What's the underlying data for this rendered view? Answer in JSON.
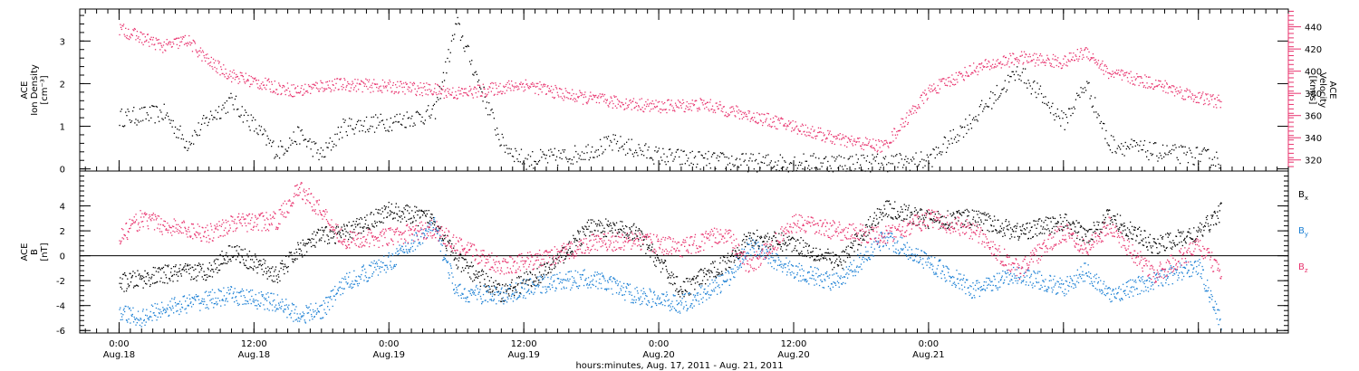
{
  "chart_data": [
    {
      "type": "scatter",
      "panel": "top",
      "ylabel_left": [
        "ACE",
        "Ion Density",
        "[cm⁻³]"
      ],
      "ylabel_right": [
        "ACE",
        "Velocity",
        "[km/s]"
      ],
      "left_axis": {
        "ticks": [
          0,
          1,
          2,
          3
        ],
        "tick_labels": [
          "0",
          "1",
          "2",
          "3"
        ],
        "ylim": [
          -0.05,
          3.75
        ]
      },
      "right_axis": {
        "ticks": [
          320,
          340,
          360,
          380,
          400,
          420,
          440
        ],
        "tick_labels": [
          "320",
          "340",
          "360",
          "380",
          "400",
          "420",
          "440"
        ],
        "ylim": [
          310,
          456
        ],
        "color": "#e8336e"
      },
      "series": [
        {
          "name": "Ion Density",
          "axis": "left",
          "color": "#000000",
          "x": [
            0,
            4,
            6,
            8,
            10,
            14,
            16,
            18,
            20,
            24,
            28,
            30,
            32,
            34,
            36,
            40,
            44,
            48,
            52,
            56,
            60,
            64,
            68,
            72,
            76,
            80,
            84,
            86,
            88,
            92,
            96,
            98
          ],
          "y": [
            1.2,
            1.3,
            0.6,
            1.2,
            1.6,
            0.4,
            0.8,
            0.3,
            1.0,
            1.1,
            1.3,
            3.4,
            2.0,
            0.6,
            0.2,
            0.3,
            0.6,
            0.3,
            0.2,
            0.15,
            0.15,
            0.15,
            0.15,
            0.2,
            1.2,
            2.3,
            1.1,
            2.0,
            0.6,
            0.4,
            0.3,
            0.2
          ]
        },
        {
          "name": "Velocity",
          "axis": "right",
          "color": "#e8336e",
          "x": [
            0,
            4,
            6,
            8,
            10,
            14,
            16,
            18,
            20,
            24,
            28,
            30,
            32,
            34,
            36,
            40,
            44,
            48,
            52,
            56,
            60,
            64,
            68,
            72,
            76,
            80,
            84,
            86,
            88,
            92,
            96,
            98
          ],
          "y": [
            438,
            422,
            428,
            408,
            396,
            385,
            382,
            387,
            388,
            386,
            383,
            380,
            382,
            385,
            388,
            378,
            372,
            368,
            370,
            360,
            350,
            338,
            332,
            382,
            402,
            412,
            408,
            418,
            398,
            389,
            376,
            372
          ]
        }
      ],
      "xlim": [
        -3.5,
        104
      ]
    },
    {
      "type": "scatter",
      "panel": "bottom",
      "ylabel_left": [
        "ACE",
        "B",
        "[nT]"
      ],
      "axis": {
        "ticks": [
          -6,
          -4,
          -2,
          0,
          2,
          4
        ],
        "tick_labels": [
          "-6",
          "-4",
          "-2",
          "0",
          "2",
          "4"
        ],
        "ylim": [
          -6.2,
          6.8
        ]
      },
      "series": [
        {
          "name": "Bx",
          "label_main": "B",
          "label_sub": "x",
          "color": "#000000",
          "x": [
            0,
            4,
            8,
            10,
            14,
            16,
            18,
            20,
            24,
            28,
            30,
            34,
            38,
            42,
            46,
            50,
            54,
            56,
            60,
            64,
            68,
            72,
            76,
            80,
            84,
            86,
            88,
            92,
            96,
            98
          ],
          "y": [
            -2.2,
            -1.5,
            -1.2,
            0.4,
            -1.6,
            0.5,
            1.6,
            1.8,
            3.6,
            2.9,
            -0.4,
            -3.0,
            -1.2,
            2.4,
            1.8,
            -2.8,
            -0.5,
            1.4,
            1.0,
            -0.6,
            3.8,
            2.9,
            3.0,
            1.9,
            2.7,
            1.6,
            3.1,
            0.8,
            1.8,
            3.6
          ]
        },
        {
          "name": "By",
          "label_main": "B",
          "label_sub": "y",
          "color": "#1a7fd4",
          "x": [
            0,
            2,
            4,
            8,
            10,
            14,
            16,
            18,
            20,
            24,
            28,
            30,
            34,
            38,
            42,
            46,
            50,
            54,
            56,
            60,
            64,
            68,
            72,
            76,
            80,
            84,
            86,
            88,
            92,
            96,
            98
          ],
          "y": [
            -4.6,
            -5.0,
            -4.2,
            -3.5,
            -3.2,
            -3.8,
            -4.8,
            -4.4,
            -2.2,
            -0.5,
            2.4,
            -3.0,
            -3.2,
            -2.2,
            -1.8,
            -3.2,
            -3.9,
            -2.0,
            0.8,
            -1.2,
            -2.2,
            1.5,
            -0.5,
            -2.8,
            -1.5,
            -2.6,
            -1.2,
            -3.2,
            -2.0,
            -0.8,
            -5.5
          ]
        },
        {
          "name": "Bz",
          "label_main": "B",
          "label_sub": "z",
          "color": "#e8336e",
          "x": [
            0,
            2,
            4,
            8,
            10,
            14,
            16,
            18,
            20,
            24,
            28,
            30,
            34,
            38,
            42,
            46,
            50,
            54,
            56,
            60,
            64,
            68,
            72,
            76,
            80,
            84,
            86,
            88,
            92,
            96,
            98
          ],
          "y": [
            1.5,
            3.0,
            2.4,
            1.8,
            2.6,
            2.8,
            5.4,
            3.6,
            1.2,
            1.5,
            2.2,
            0.8,
            -0.8,
            -0.2,
            1.0,
            1.2,
            0.6,
            1.8,
            -1.0,
            2.6,
            2.0,
            1.6,
            3.0,
            2.0,
            -1.2,
            2.0,
            0.6,
            2.4,
            -1.6,
            0.8,
            -1.4
          ]
        }
      ],
      "xlim": [
        -3.5,
        104
      ]
    }
  ],
  "x_axis": {
    "ticks_hours": [
      0,
      12,
      24,
      36,
      48,
      60,
      72,
      84,
      96
    ],
    "tick_labels": [
      [
        "0:00",
        "Aug.18"
      ],
      [
        "12:00",
        "Aug.18"
      ],
      [
        "0:00",
        "Aug.19"
      ],
      [
        "12:00",
        "Aug.19"
      ],
      [
        "0:00",
        "Aug.20"
      ],
      [
        "12:00",
        "Aug.20"
      ],
      [
        "0:00",
        "Aug.21"
      ]
    ],
    "tick_label_hours": [
      0,
      12,
      24,
      36,
      48,
      60,
      72
    ],
    "xlabel": "hours:minutes, Aug. 17, 2011 - Aug. 21, 2011"
  }
}
